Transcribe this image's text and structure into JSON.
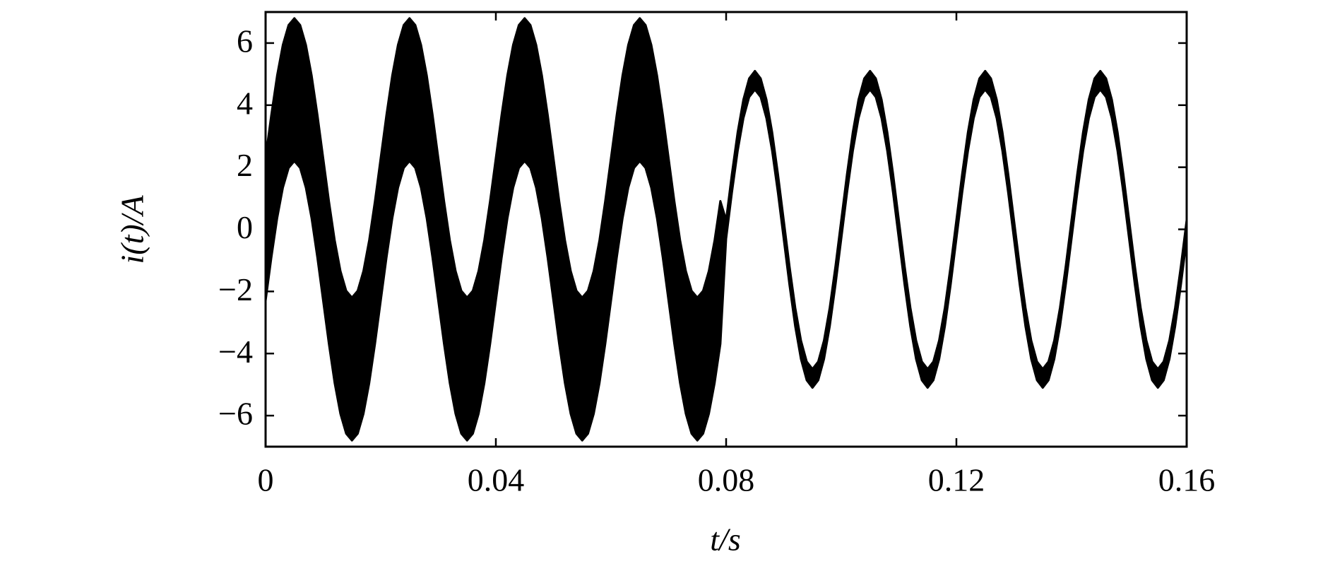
{
  "chart_data": {
    "type": "line",
    "xlabel": "t/s",
    "ylabel": "i(t)/A",
    "x": [
      0,
      0.001,
      0.002,
      0.003,
      0.004,
      0.005,
      0.006,
      0.007,
      0.008,
      0.009,
      0.01,
      0.011,
      0.012,
      0.013,
      0.014,
      0.015,
      0.016,
      0.017,
      0.018,
      0.019,
      0.02,
      0.021,
      0.022,
      0.023,
      0.024,
      0.025,
      0.026,
      0.027,
      0.028,
      0.029,
      0.03,
      0.031,
      0.032,
      0.033,
      0.034,
      0.035,
      0.036,
      0.037,
      0.038,
      0.039,
      0.04,
      0.041,
      0.042,
      0.043,
      0.044,
      0.045,
      0.046,
      0.047,
      0.048,
      0.049,
      0.05,
      0.051,
      0.052,
      0.053,
      0.054,
      0.055,
      0.056,
      0.057,
      0.058,
      0.059,
      0.06,
      0.061,
      0.062,
      0.063,
      0.064,
      0.065,
      0.066,
      0.067,
      0.068,
      0.069,
      0.07,
      0.071,
      0.072,
      0.073,
      0.074,
      0.075,
      0.076,
      0.077,
      0.078,
      0.079,
      0.08,
      0.081,
      0.082,
      0.083,
      0.084,
      0.085,
      0.086,
      0.087,
      0.088,
      0.089,
      0.09,
      0.091,
      0.092,
      0.093,
      0.094,
      0.095,
      0.096,
      0.097,
      0.098,
      0.099,
      0.1,
      0.101,
      0.102,
      0.103,
      0.104,
      0.105,
      0.106,
      0.107,
      0.108,
      0.109,
      0.11,
      0.111,
      0.112,
      0.113,
      0.114,
      0.115,
      0.116,
      0.117,
      0.118,
      0.119,
      0.12,
      0.121,
      0.122,
      0.123,
      0.124,
      0.125,
      0.126,
      0.127,
      0.128,
      0.129,
      0.13,
      0.131,
      0.132,
      0.133,
      0.134,
      0.135,
      0.136,
      0.137,
      0.138,
      0.139,
      0.14,
      0.141,
      0.142,
      0.143,
      0.144,
      0.145,
      0.146,
      0.147,
      0.148,
      0.149,
      0.15,
      0.151,
      0.152,
      0.153,
      0.154,
      0.155,
      0.156,
      0.157,
      0.158,
      0.159,
      0.16
    ],
    "series": [
      {
        "color": "#000000",
        "values": [
          2.3,
          3.69,
          4.95,
          5.94,
          6.58,
          6.8,
          6.58,
          5.94,
          4.95,
          3.69,
          2.3,
          0.91,
          -0.35,
          -1.34,
          -1.98,
          -2.2,
          -1.98,
          -1.34,
          -0.35,
          0.91,
          2.3,
          3.69,
          4.95,
          5.94,
          6.58,
          6.8,
          6.58,
          5.94,
          4.95,
          3.69,
          2.3,
          0.91,
          -0.35,
          -1.34,
          -1.98,
          -2.2,
          -1.98,
          -1.34,
          -0.35,
          0.91,
          2.3,
          3.69,
          4.95,
          5.94,
          6.58,
          6.8,
          6.58,
          5.94,
          4.95,
          3.69,
          2.3,
          0.91,
          -0.35,
          -1.34,
          -1.98,
          -2.2,
          -1.98,
          -1.34,
          -0.35,
          0.91,
          2.3,
          3.69,
          4.95,
          5.94,
          6.58,
          6.8,
          6.58,
          5.94,
          4.95,
          3.69,
          2.3,
          0.91,
          -0.35,
          -1.34,
          -1.98,
          -2.2,
          -1.98,
          -1.34,
          -0.35,
          0.91,
          0.3,
          1.78,
          3.12,
          4.18,
          4.86,
          5.1,
          4.86,
          4.18,
          3.12,
          1.78,
          0.3,
          -1.18,
          -2.52,
          -3.58,
          -4.26,
          -4.5,
          -4.26,
          -3.58,
          -2.52,
          -1.18,
          0.3,
          1.78,
          3.12,
          4.18,
          4.86,
          5.1,
          4.86,
          4.18,
          3.12,
          1.78,
          0.3,
          -1.18,
          -2.52,
          -3.58,
          -4.26,
          -4.5,
          -4.26,
          -3.58,
          -2.52,
          -1.18,
          0.3,
          1.78,
          3.12,
          4.18,
          4.86,
          5.1,
          4.86,
          4.18,
          3.12,
          1.78,
          0.3,
          -1.18,
          -2.52,
          -3.58,
          -4.26,
          -4.5,
          -4.26,
          -3.58,
          -2.52,
          -1.18,
          0.3,
          1.78,
          3.12,
          4.18,
          4.86,
          5.1,
          4.86,
          4.18,
          3.12,
          1.78,
          0.3,
          -1.18,
          -2.52,
          -3.58,
          -4.26,
          -4.5,
          -4.26,
          -3.58,
          -2.52,
          -1.18,
          0.3
        ]
      },
      {
        "color": "#000000",
        "values": [
          -2.3,
          -0.91,
          0.35,
          1.34,
          1.98,
          2.2,
          1.98,
          1.34,
          0.35,
          -0.91,
          -2.3,
          -3.69,
          -4.95,
          -5.94,
          -6.58,
          -6.8,
          -6.58,
          -5.94,
          -4.95,
          -3.69,
          -2.3,
          -0.91,
          0.35,
          1.34,
          1.98,
          2.2,
          1.98,
          1.34,
          0.35,
          -0.91,
          -2.3,
          -3.69,
          -4.95,
          -5.94,
          -6.58,
          -6.8,
          -6.58,
          -5.94,
          -4.95,
          -3.69,
          -2.3,
          -0.91,
          0.35,
          1.34,
          1.98,
          2.2,
          1.98,
          1.34,
          0.35,
          -0.91,
          -2.3,
          -3.69,
          -4.95,
          -5.94,
          -6.58,
          -6.8,
          -6.58,
          -5.94,
          -4.95,
          -3.69,
          -2.3,
          -0.91,
          0.35,
          1.34,
          1.98,
          2.2,
          1.98,
          1.34,
          0.35,
          -0.91,
          -2.3,
          -3.69,
          -4.95,
          -5.94,
          -6.58,
          -6.8,
          -6.58,
          -5.94,
          -4.95,
          -3.69,
          -0.3,
          1.18,
          2.52,
          3.58,
          4.26,
          4.5,
          4.26,
          3.58,
          2.52,
          1.18,
          -0.3,
          -1.78,
          -3.12,
          -4.18,
          -4.86,
          -5.1,
          -4.86,
          -4.18,
          -3.12,
          -1.78,
          -0.3,
          1.18,
          2.52,
          3.58,
          4.26,
          4.5,
          4.26,
          3.58,
          2.52,
          1.18,
          -0.3,
          -1.78,
          -3.12,
          -4.18,
          -4.86,
          -5.1,
          -4.86,
          -4.18,
          -3.12,
          -1.78,
          -0.3,
          1.18,
          2.52,
          3.58,
          4.26,
          4.5,
          4.26,
          3.58,
          2.52,
          1.18,
          -0.3,
          -1.78,
          -3.12,
          -4.18,
          -4.86,
          -5.1,
          -4.86,
          -4.18,
          -3.12,
          -1.78,
          -0.3,
          1.18,
          2.52,
          3.58,
          4.26,
          4.5,
          4.26,
          3.58,
          2.52,
          1.18,
          -0.3,
          -1.78,
          -3.12,
          -4.18,
          -4.86,
          -5.1,
          -4.86,
          -4.18,
          -3.12,
          -1.78,
          -0.3
        ]
      }
    ],
    "xlim": [
      0,
      0.16
    ],
    "xticks": [
      0,
      0.04,
      0.08,
      0.12,
      0.16
    ],
    "ylim": [
      -7,
      7
    ],
    "yticks": [
      {
        "value": -6,
        "label": "−6"
      },
      {
        "value": -4,
        "label": "−4"
      },
      {
        "value": -2,
        "label": "−2"
      },
      0,
      2,
      4,
      6
    ]
  }
}
